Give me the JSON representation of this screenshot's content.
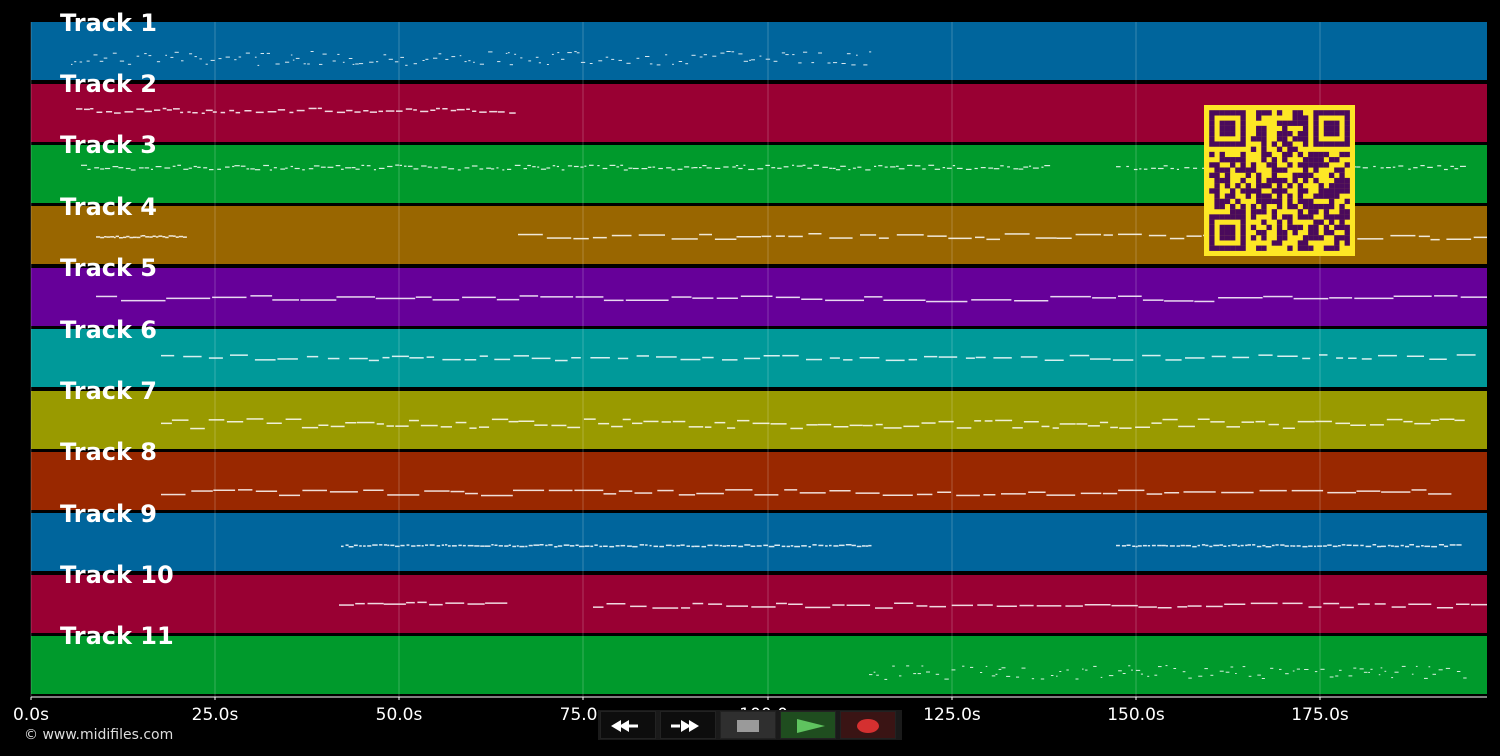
{
  "tracks": [
    {
      "label": "Track 1",
      "color": "#00659c"
    },
    {
      "label": "Track 2",
      "color": "#990033"
    },
    {
      "label": "Track 3",
      "color": "#009a2c"
    },
    {
      "label": "Track 4",
      "color": "#996600"
    },
    {
      "label": "Track 5",
      "color": "#660099"
    },
    {
      "label": "Track 6",
      "color": "#009999"
    },
    {
      "label": "Track 7",
      "color": "#999a00"
    },
    {
      "label": "Track 8",
      "color": "#992800"
    },
    {
      "label": "Track 9",
      "color": "#00659c"
    },
    {
      "label": "Track 10",
      "color": "#990033"
    },
    {
      "label": "Track 11",
      "color": "#009a2c"
    }
  ],
  "timeline": {
    "tick_labels": [
      "0.0s",
      "25.0s",
      "50.0s",
      "75.0s",
      "100.0s",
      "125.0s",
      "150.0s",
      "175.0s"
    ]
  },
  "qr": {
    "foreground": "#4a0a5c",
    "background": "#fde725"
  },
  "footer": {
    "copyright": "© www.midifiles.com"
  },
  "transport": {
    "buttons": [
      {
        "name": "rewind-button",
        "icon": "rewind-icon"
      },
      {
        "name": "fast-forward-button",
        "icon": "fast-forward-icon"
      },
      {
        "name": "stop-button",
        "icon": "stop-icon"
      },
      {
        "name": "play-button",
        "icon": "play-icon"
      },
      {
        "name": "record-button",
        "icon": "record-icon"
      }
    ]
  }
}
